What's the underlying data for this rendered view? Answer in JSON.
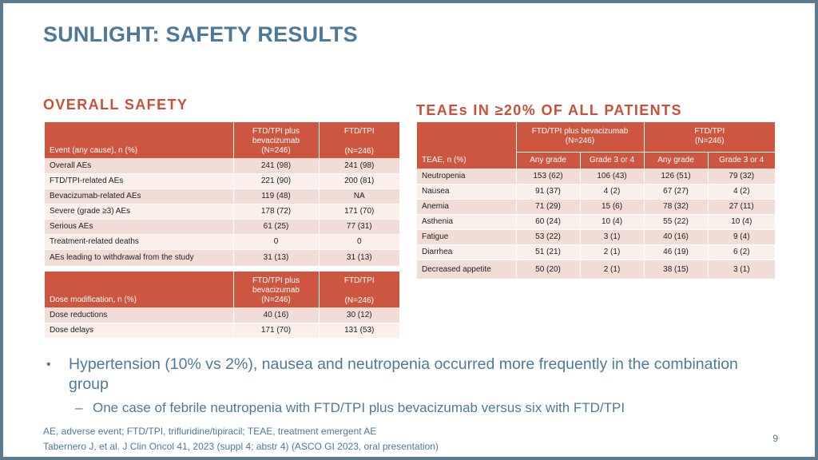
{
  "title": "SUNLIGHT: SAFETY RESULTS",
  "overall": {
    "heading": "OVERALL SAFETY",
    "header": {
      "event_col": "Event (any cause), n (%)",
      "arm1_name": "FTD/TPI plus bevacizumab",
      "arm1_n": "(N=246)",
      "arm2_name": "FTD/TPI",
      "arm2_n": "(N=246)"
    },
    "rows": [
      {
        "label": "Overall AEs",
        "a": "241 (98)",
        "b": "241 (98)"
      },
      {
        "label": "FTD/TPI-related AEs",
        "a": "221 (90)",
        "b": "200 (81)"
      },
      {
        "label": "Bevacizumab-related AEs",
        "a": "119 (48)",
        "b": "NA"
      },
      {
        "label": "Severe (grade ≥3) AEs",
        "a": "178 (72)",
        "b": "171 (70)"
      },
      {
        "label": "Serious AEs",
        "a": "61 (25)",
        "b": "77 (31)"
      },
      {
        "label": "Treatment-related deaths",
        "a": "0",
        "b": "0"
      },
      {
        "label": "AEs leading to withdrawal from the study",
        "a": "31 (13)",
        "b": "31 (13)"
      }
    ]
  },
  "dose": {
    "header": {
      "event_col": "Dose modification, n (%)",
      "arm1_name": "FTD/TPI plus bevacizumab",
      "arm1_n": "(N=246)",
      "arm2_name": "FTD/TPI",
      "arm2_n": "(N=246)"
    },
    "rows": [
      {
        "label": "Dose reductions",
        "a": "40 (16)",
        "b": "30 (12)"
      },
      {
        "label": "Dose delays",
        "a": "171 (70)",
        "b": "131 (53)"
      }
    ]
  },
  "teae": {
    "heading": "TEAEs IN ≥20% OF ALL PATIENTS",
    "header": {
      "event_col": "TEAE, n (%)",
      "arm1": "FTD/TPI plus bevacizumab",
      "arm1_n": "(N=246)",
      "arm2": "FTD/TPI",
      "arm2_n": "(N=246)",
      "any_grade": "Any grade",
      "grade34": "Grade 3 or 4"
    },
    "rows": [
      {
        "label": "Neutropenia",
        "v": [
          "153 (62)",
          "106 (43)",
          "126 (51)",
          "79 (32)"
        ]
      },
      {
        "label": "Nausea",
        "v": [
          "91 (37)",
          "4 (2)",
          "67 (27)",
          "4 (2)"
        ]
      },
      {
        "label": "Anemia",
        "v": [
          "71 (29)",
          "15 (6)",
          "78 (32)",
          "27 (11)"
        ]
      },
      {
        "label": "Asthenia",
        "v": [
          "60 (24)",
          "10 (4)",
          "55 (22)",
          "10 (4)"
        ]
      },
      {
        "label": "Fatigue",
        "v": [
          "53 (22)",
          "3 (1)",
          "40 (16)",
          "9 (4)"
        ]
      },
      {
        "label": "Diarrhea",
        "v": [
          "51 (21)",
          "2 (1)",
          "46 (19)",
          "6 (2)"
        ]
      },
      {
        "label": "Decreased appetite",
        "v": [
          "50 (20)",
          "2 (1)",
          "38 (15)",
          "3 (1)"
        ]
      }
    ]
  },
  "bullets": {
    "main": "Hypertension (10% vs 2%), nausea and neutropenia occurred more frequently in the combination group",
    "sub": "One case of febrile neutropenia with FTD/TPI plus bevacizumab versus six with FTD/TPI"
  },
  "footnotes": {
    "abbrev": "AE, adverse event; FTD/TPI, trifluridine/tipiracil; TEAE, treatment emergent AE",
    "reference": "Tabernero J, et al. J Clin Oncol 41, 2023 (suppl 4; abstr 4) (ASCO GI 2023, oral presentation)"
  },
  "page_number": "9",
  "colors": {
    "title": "#4d7a9a",
    "section_heading": "#c8503a",
    "table_header": "#cd5640",
    "row_dark": "#f2dcd6",
    "row_light": "#fbefec"
  }
}
